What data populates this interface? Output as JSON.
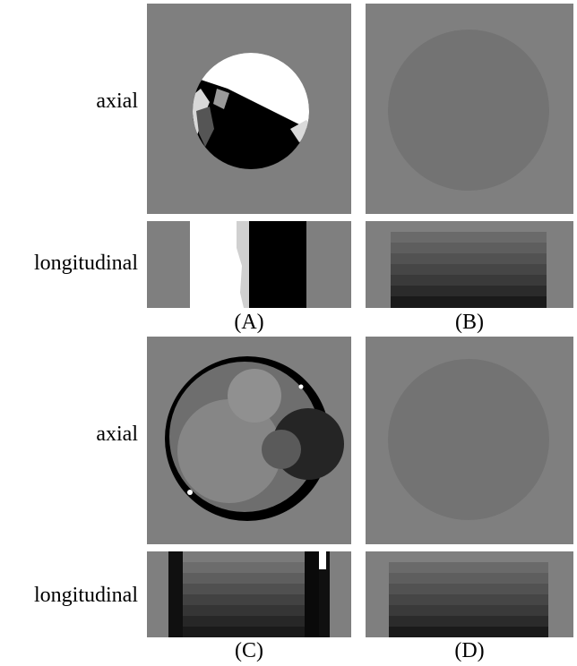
{
  "row_labels": {
    "axial_top": "axial",
    "longitudinal_top": "longitudinal",
    "axial_bottom": "axial",
    "longitudinal_bottom": "longitudinal"
  },
  "captions": {
    "a": "(A)",
    "b": "(B)",
    "c": "(C)",
    "d": "(D)"
  },
  "colors": {
    "background_gray": "#7f7f7f",
    "disk_gray": "#737373"
  }
}
